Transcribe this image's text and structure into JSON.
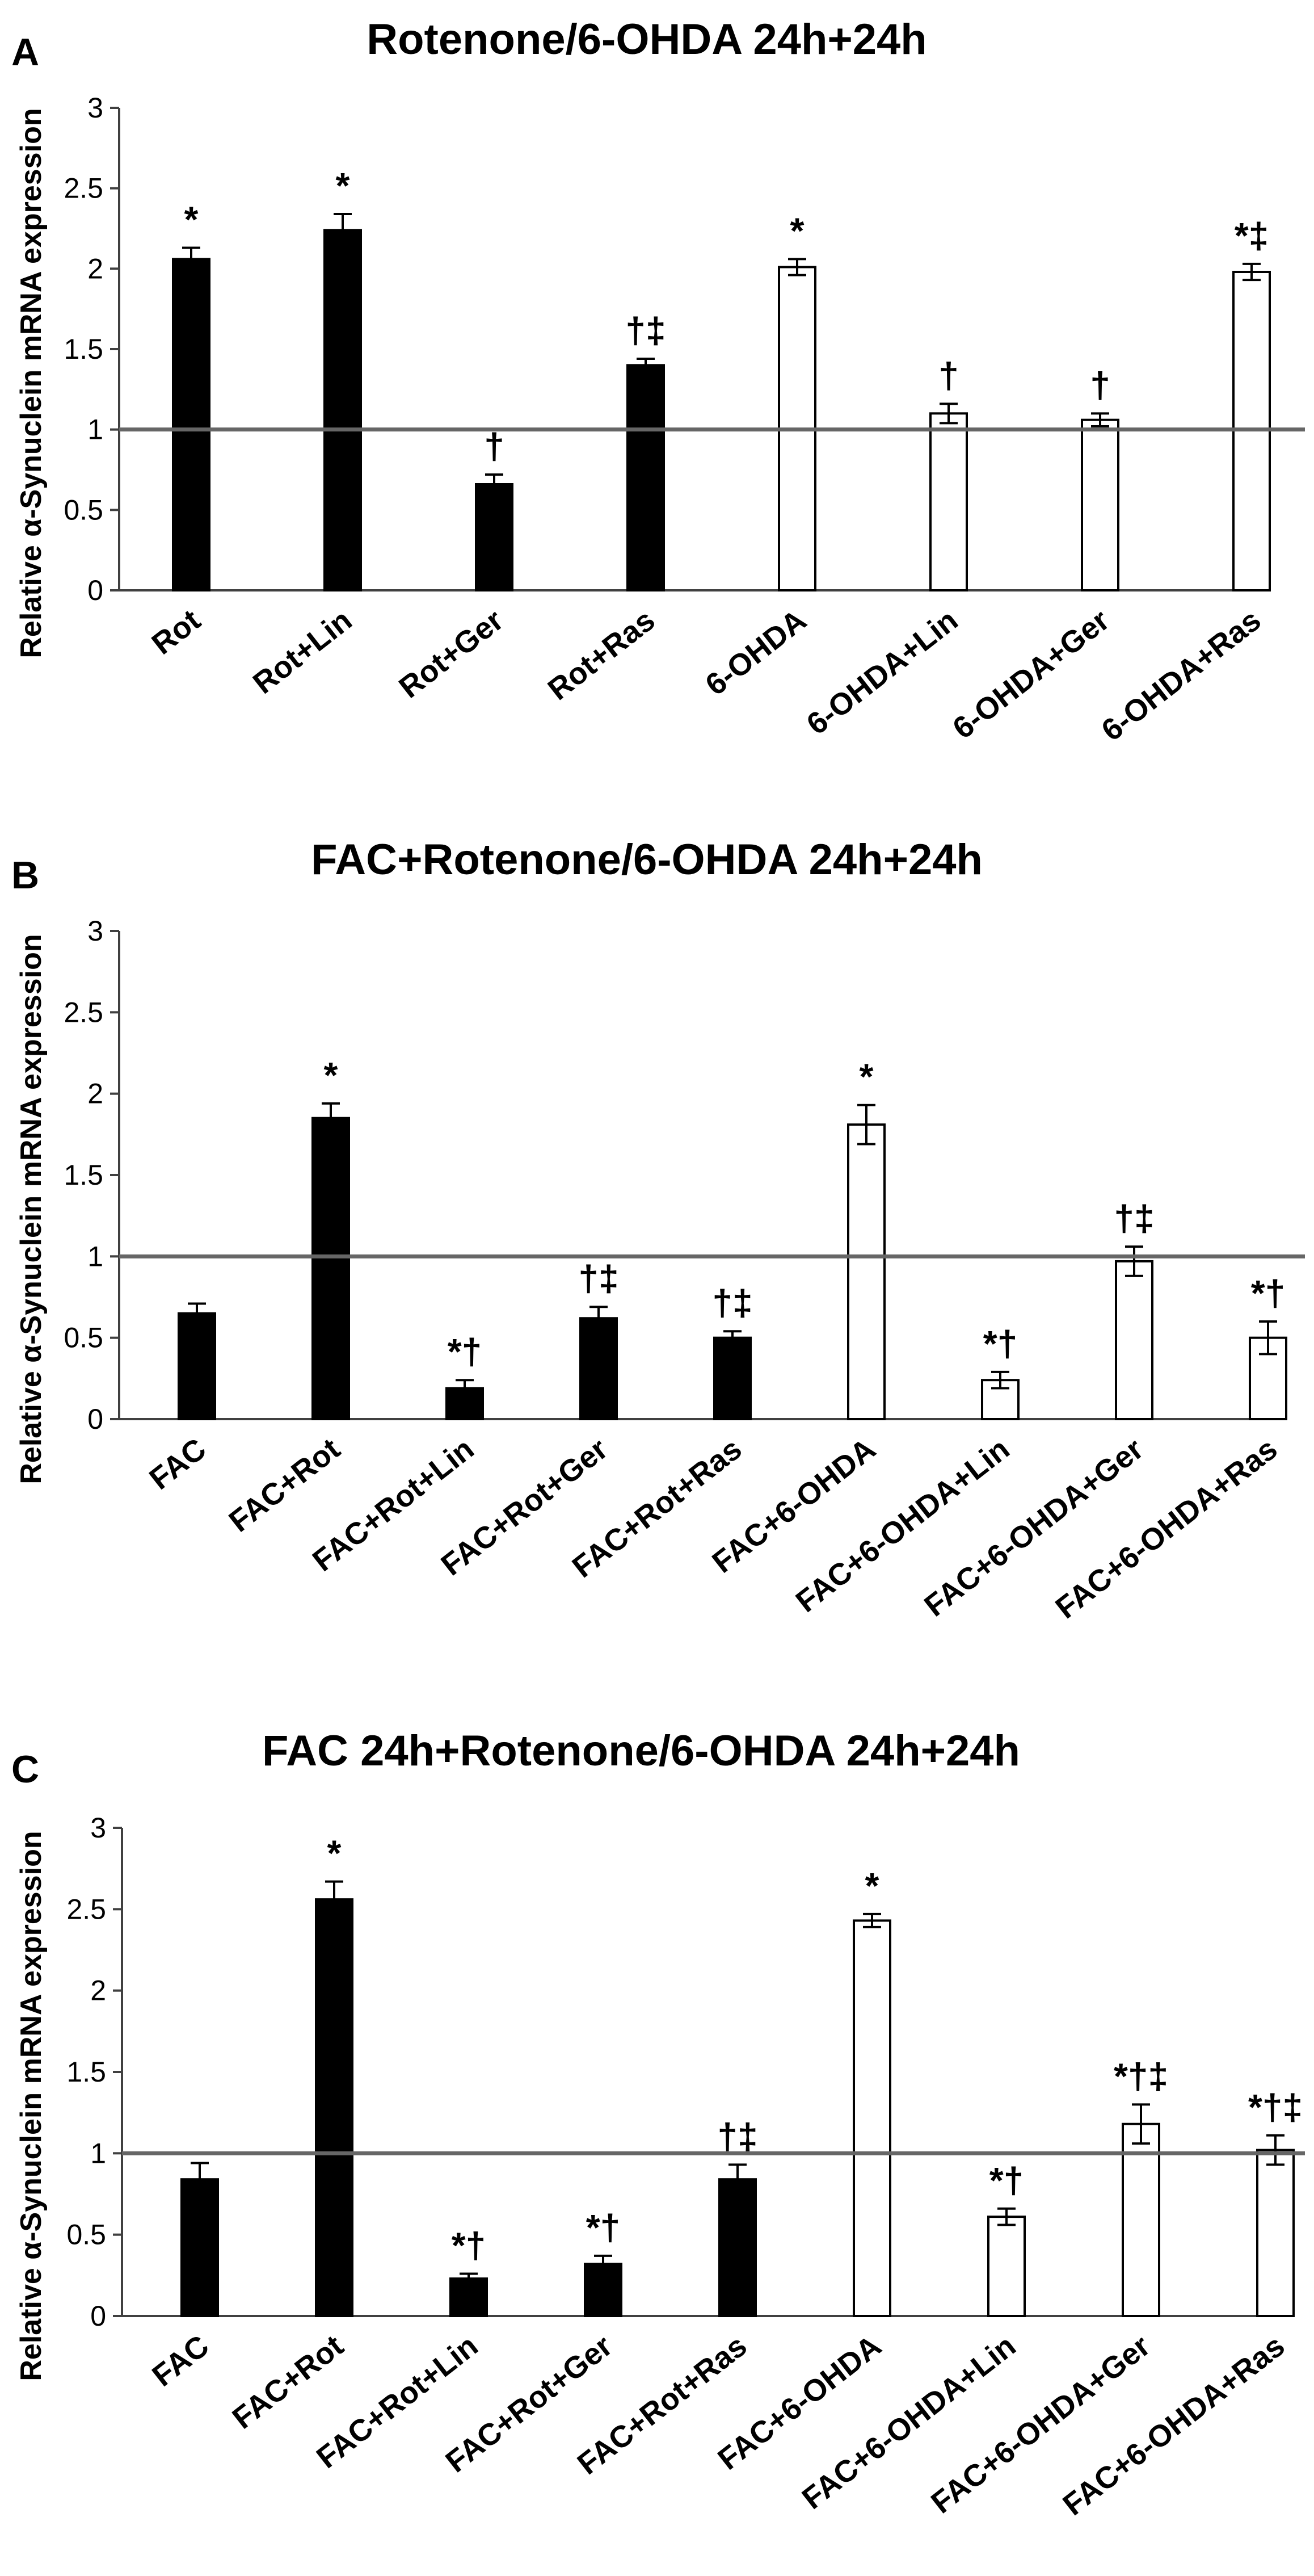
{
  "colors": {
    "filled": "#000000",
    "open": "#ffffff",
    "axis": "#404040",
    "reference": "#666666"
  },
  "chart_data": [
    {
      "type": "bar",
      "panel": "A",
      "title": "Rotenone/6-OHDA 24h+24h",
      "ylabel": "Relative α-Synuclein mRNA expression",
      "xlabel": "",
      "ylim": [
        0,
        3
      ],
      "yticks": [
        "0",
        "0.5",
        "1",
        "1.5",
        "2",
        "2.5",
        "3"
      ],
      "reference_line": 1,
      "categories": [
        "Rot",
        "Rot+Lin",
        "Rot+Ger",
        "Rot+Ras",
        "6-OHDA",
        "6-OHDA+Lin",
        "6-OHDA+Ger",
        "6-OHDA+Ras"
      ],
      "values": [
        2.06,
        2.24,
        0.66,
        1.4,
        2.01,
        1.1,
        1.06,
        1.98
      ],
      "errors": [
        0.07,
        0.1,
        0.06,
        0.04,
        0.05,
        0.06,
        0.04,
        0.05
      ],
      "fill": [
        "filled",
        "filled",
        "filled",
        "filled",
        "open",
        "open",
        "open",
        "open"
      ],
      "annotations": [
        "*",
        "*",
        "†",
        "†‡",
        "*",
        "†",
        "†",
        "*‡"
      ]
    },
    {
      "type": "bar",
      "panel": "B",
      "title": "FAC+Rotenone/6-OHDA 24h+24h",
      "ylabel": "Relative α-Synuclein mRNA expression",
      "xlabel": "",
      "ylim": [
        0,
        3
      ],
      "yticks": [
        "0",
        "0.5",
        "1",
        "1.5",
        "2",
        "2.5",
        "3"
      ],
      "reference_line": 1,
      "categories": [
        "FAC",
        "FAC+Rot",
        "FAC+Rot+Lin",
        "FAC+Rot+Ger",
        "FAC+Rot+Ras",
        "FAC+6-OHDA",
        "FAC+6-OHDA+Lin",
        "FAC+6-OHDA+Ger",
        "FAC+6-OHDA+Ras"
      ],
      "values": [
        0.65,
        1.85,
        0.19,
        0.62,
        0.5,
        1.81,
        0.24,
        0.97,
        0.5
      ],
      "errors": [
        0.06,
        0.09,
        0.05,
        0.07,
        0.04,
        0.12,
        0.05,
        0.09,
        0.1
      ],
      "fill": [
        "filled",
        "filled",
        "filled",
        "filled",
        "filled",
        "open",
        "open",
        "open",
        "open"
      ],
      "annotations": [
        "",
        "*",
        "*†",
        "†‡",
        "†‡",
        "*",
        "*†",
        "†‡",
        "*†"
      ]
    },
    {
      "type": "bar",
      "panel": "C",
      "title": "FAC 24h+Rotenone/6-OHDA 24h+24h",
      "ylabel": "Relative α-Synuclein mRNA expression",
      "xlabel": "",
      "ylim": [
        0,
        3
      ],
      "yticks": [
        "0",
        "0.5",
        "1",
        "1.5",
        "2",
        "2.5",
        "3"
      ],
      "reference_line": 1,
      "categories": [
        "FAC",
        "FAC+Rot",
        "FAC+Rot+Lin",
        "FAC+Rot+Ger",
        "FAC+Rot+Ras",
        "FAC+6-OHDA",
        "FAC+6-OHDA+Lin",
        "FAC+6-OHDA+Ger",
        "FAC+6-OHDA+Ras"
      ],
      "values": [
        0.84,
        2.56,
        0.23,
        0.32,
        0.84,
        2.43,
        0.61,
        1.18,
        1.02
      ],
      "errors": [
        0.1,
        0.11,
        0.03,
        0.05,
        0.09,
        0.04,
        0.05,
        0.12,
        0.09
      ],
      "fill": [
        "filled",
        "filled",
        "filled",
        "filled",
        "filled",
        "open",
        "open",
        "open",
        "open"
      ],
      "annotations": [
        "",
        "*",
        "*†",
        "*†",
        "†‡",
        "*",
        "*†",
        "*†‡",
        "*†‡"
      ]
    }
  ]
}
